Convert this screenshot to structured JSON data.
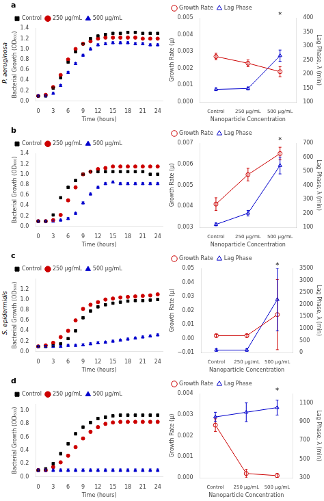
{
  "chart_data": [
    {
      "type": "scatter",
      "title": "a",
      "x_label": "Time (hours)",
      "y_label": "Bacterial Growth (OD₆₀₀)",
      "x": [
        0,
        1.5,
        3,
        4.5,
        6,
        7.5,
        9,
        10.5,
        12,
        13.5,
        15,
        16.5,
        18,
        19.5,
        21,
        22.5,
        24
      ],
      "series": [
        {
          "name": "Control",
          "color": "#000000",
          "marker": "square",
          "values": [
            0.1,
            0.1,
            0.25,
            0.45,
            0.75,
            0.95,
            1.1,
            1.2,
            1.25,
            1.28,
            1.3,
            1.3,
            1.32,
            1.32,
            1.3,
            1.3,
            1.3
          ],
          "errors": [
            0.02,
            0.02,
            0.02,
            0.02,
            0.02,
            0.02,
            0.02,
            0.02,
            0.02,
            0.02,
            0.02,
            0.02,
            0.02,
            0.02,
            0.02,
            0.02,
            0.02
          ]
        },
        {
          "name": "250 μg/mL",
          "color": "#cc0000",
          "marker": "circle",
          "values": [
            0.1,
            0.12,
            0.27,
            0.5,
            0.8,
            1.0,
            1.1,
            1.15,
            1.2,
            1.22,
            1.22,
            1.22,
            1.22,
            1.22,
            1.2,
            1.2,
            1.2
          ],
          "errors": [
            0.02,
            0.02,
            0.02,
            0.02,
            0.02,
            0.02,
            0.02,
            0.02,
            0.02,
            0.02,
            0.02,
            0.02,
            0.02,
            0.02,
            0.02,
            0.02,
            0.02
          ]
        },
        {
          "name": "500 μg/mL",
          "color": "#0000cc",
          "marker": "triangle",
          "values": [
            0.1,
            0.1,
            0.15,
            0.3,
            0.55,
            0.72,
            0.88,
            1.0,
            1.08,
            1.1,
            1.12,
            1.12,
            1.12,
            1.1,
            1.1,
            1.08,
            1.08
          ],
          "errors": [
            0.02,
            0.02,
            0.02,
            0.02,
            0.02,
            0.02,
            0.02,
            0.02,
            0.02,
            0.02,
            0.02,
            0.02,
            0.02,
            0.02,
            0.02,
            0.02,
            0.02
          ]
        }
      ],
      "xlim": [
        -0.5,
        25
      ],
      "xticks": [
        0,
        3,
        6,
        9,
        12,
        15,
        18,
        21,
        24
      ],
      "ylim": [
        0,
        1.4
      ],
      "yticks": [
        {
          "value": 0,
          "label": "0.0"
        },
        0.2,
        0.4,
        0.6,
        0.8,
        {
          "value": 1,
          "label": "1.0"
        },
        1.2,
        1.4
      ],
      "grid": false,
      "legend": "upper left",
      "annotations": [
        {
          "text": "P. aeruginosa"
        }
      ]
    },
    {
      "type": "line",
      "x_label": "Nanoparticle Concentration",
      "y_label": "Growth Rate (μ)",
      "y2_label": "Lag Phase, λ (min)",
      "categories": [
        "Control",
        "250 μg/mL",
        "500 μg/mL"
      ],
      "series": [
        {
          "name": "Growth Rate",
          "color": "#cc0000",
          "marker": "circle",
          "values": [
            0.0027,
            0.0023,
            0.0018
          ],
          "errors": [
            0.0002,
            0.0002,
            0.0003
          ]
        },
        {
          "name": "Lag Phase",
          "color": "#0000cc",
          "marker": "triangle",
          "axis": "y2",
          "values": [
            145,
            148,
            265
          ],
          "errors": [
            5,
            5,
            20
          ]
        }
      ],
      "ylim": [
        0.0,
        0.005
      ],
      "yticks": [
        {
          "value": 0,
          "label": "0.000"
        },
        0.001,
        0.002,
        0.003,
        0.004,
        0.005
      ],
      "y2lim": [
        100,
        400
      ],
      "y2ticks": [
        100,
        150,
        200,
        250,
        300,
        350,
        400
      ],
      "grid": false,
      "legend": "upper left",
      "annotations": [
        {
          "text": "*",
          "x": "500 μg/mL"
        }
      ]
    },
    {
      "type": "scatter",
      "title": "b",
      "x_label": "Time (hours)",
      "y_label": "Bacterial Growth (OD₆₀₀)",
      "x": [
        0,
        1.5,
        3,
        4.5,
        6,
        7.5,
        9,
        10.5,
        12,
        13.5,
        15,
        16.5,
        18,
        19.5,
        21,
        22.5,
        24
      ],
      "series": [
        {
          "name": "Control",
          "color": "#000000",
          "marker": "square",
          "values": [
            0.1,
            0.1,
            0.22,
            0.55,
            0.75,
            0.88,
            1.0,
            1.05,
            1.05,
            1.05,
            1.05,
            1.05,
            1.05,
            1.05,
            1.05,
            1.0,
            1.0
          ],
          "errors": [
            0.02,
            0.02,
            0.02,
            0.02,
            0.02,
            0.02,
            0.02,
            0.02,
            0.02,
            0.02,
            0.02,
            0.02,
            0.02,
            0.02,
            0.02,
            0.02,
            0.02
          ]
        },
        {
          "name": "250 μg/mL",
          "color": "#cc0000",
          "marker": "circle",
          "values": [
            0.1,
            0.1,
            0.12,
            0.22,
            0.5,
            0.75,
            1.0,
            1.05,
            1.1,
            1.12,
            1.15,
            1.15,
            1.15,
            1.15,
            1.15,
            1.15,
            1.15
          ],
          "errors": [
            0.02,
            0.02,
            0.02,
            0.02,
            0.02,
            0.02,
            0.02,
            0.02,
            0.02,
            0.02,
            0.02,
            0.02,
            0.02,
            0.02,
            0.02,
            0.02,
            0.02
          ]
        },
        {
          "name": "500 μg/mL",
          "color": "#0000cc",
          "marker": "triangle",
          "values": [
            0.1,
            0.1,
            0.1,
            0.12,
            0.15,
            0.25,
            0.45,
            0.62,
            0.75,
            0.82,
            0.85,
            0.82,
            0.82,
            0.82,
            0.82,
            0.82,
            0.82
          ],
          "errors": [
            0.02,
            0.02,
            0.02,
            0.02,
            0.02,
            0.02,
            0.02,
            0.02,
            0.02,
            0.02,
            0.02,
            0.02,
            0.02,
            0.02,
            0.02,
            0.02,
            0.02
          ]
        }
      ],
      "xlim": [
        -0.5,
        25
      ],
      "xticks": [
        0,
        3,
        6,
        9,
        12,
        15,
        18,
        21,
        24
      ],
      "ylim": [
        0,
        1.4
      ],
      "yticks": [
        {
          "value": 0,
          "label": "0.0"
        },
        0.2,
        0.4,
        0.6,
        0.8,
        {
          "value": 1,
          "label": "1.0"
        },
        1.2,
        1.4
      ],
      "grid": false,
      "legend": "upper left"
    },
    {
      "type": "line",
      "x_label": "Nanoparticle Concentration",
      "y_label": "Growth Rate (μ)",
      "y2_label": "Lag Phase, λ (min)",
      "categories": [
        "Control",
        "250 μg/mL",
        "500 μg/mL"
      ],
      "series": [
        {
          "name": "Growth Rate",
          "color": "#cc0000",
          "marker": "circle",
          "values": [
            0.0041,
            0.0055,
            0.0065
          ],
          "errors": [
            0.0003,
            0.0003,
            0.0003
          ]
        },
        {
          "name": "Lag Phase",
          "color": "#0000cc",
          "marker": "triangle",
          "axis": "y2",
          "values": [
            120,
            200,
            540
          ],
          "errors": [
            10,
            20,
            60
          ]
        }
      ],
      "ylim": [
        0.003,
        0.007
      ],
      "yticks": [
        0.003,
        0.004,
        0.005,
        0.006,
        0.007
      ],
      "y2lim": [
        100,
        700
      ],
      "y2ticks": [
        100,
        200,
        300,
        400,
        500,
        600,
        700
      ],
      "grid": false,
      "legend": "upper left",
      "annotations": [
        {
          "text": "*",
          "x": "500 μg/mL"
        }
      ]
    },
    {
      "type": "scatter",
      "title": "c",
      "x_label": "Time (hours)",
      "y_label": "Bacterial Growth (OD₆₀₀)",
      "x": [
        0,
        1.5,
        3,
        4.5,
        6,
        7.5,
        9,
        10.5,
        12,
        13.5,
        15,
        16.5,
        18,
        19.5,
        21,
        22.5,
        24
      ],
      "series": [
        {
          "name": "Control",
          "color": "#000000",
          "marker": "square",
          "values": [
            0.1,
            0.1,
            0.12,
            0.15,
            0.25,
            0.4,
            0.65,
            0.78,
            0.86,
            0.9,
            0.93,
            0.95,
            0.97,
            0.98,
            0.98,
            0.99,
            1.0
          ],
          "errors": [
            0.02,
            0.02,
            0.02,
            0.02,
            0.02,
            0.02,
            0.02,
            0.02,
            0.02,
            0.02,
            0.02,
            0.02,
            0.02,
            0.02,
            0.02,
            0.02,
            0.02
          ]
        },
        {
          "name": "250 μg/mL",
          "color": "#cc0000",
          "marker": "circle",
          "values": [
            0.1,
            0.12,
            0.17,
            0.28,
            0.4,
            0.6,
            0.82,
            0.9,
            0.95,
            1.0,
            1.02,
            1.04,
            1.05,
            1.06,
            1.07,
            1.08,
            1.1
          ],
          "errors": [
            0.02,
            0.02,
            0.02,
            0.02,
            0.02,
            0.02,
            0.02,
            0.02,
            0.02,
            0.02,
            0.02,
            0.02,
            0.02,
            0.02,
            0.02,
            0.02,
            0.02
          ]
        },
        {
          "name": "500 μg/mL",
          "color": "#0000cc",
          "marker": "triangle",
          "values": [
            0.1,
            0.1,
            0.1,
            0.1,
            0.12,
            0.12,
            0.13,
            0.15,
            0.17,
            0.18,
            0.2,
            0.22,
            0.24,
            0.26,
            0.28,
            0.3,
            0.32
          ],
          "errors": [
            0.02,
            0.02,
            0.02,
            0.02,
            0.02,
            0.02,
            0.02,
            0.02,
            0.02,
            0.02,
            0.02,
            0.02,
            0.02,
            0.02,
            0.02,
            0.02,
            0.02
          ]
        }
      ],
      "xlim": [
        -0.5,
        25
      ],
      "xticks": [
        0,
        3,
        6,
        9,
        12,
        15,
        18,
        21,
        24
      ],
      "ylim": [
        0,
        1.4
      ],
      "yticks": [
        {
          "value": 0,
          "label": "0.0"
        },
        0.2,
        0.4,
        0.6,
        0.8,
        {
          "value": 1,
          "label": "1.0"
        },
        1.2
      ],
      "grid": false,
      "legend": "upper left",
      "annotations": [
        {
          "text": "S. epidermidis"
        }
      ]
    },
    {
      "type": "line",
      "x_label": "Nanoparticle Concentration",
      "y_label": "Growth Rate (μ)",
      "y2_label": "Lag Phase, λ (min)",
      "categories": [
        "Control",
        "250 μg/mL",
        "500 μg/mL"
      ],
      "series": [
        {
          "name": "Growth Rate",
          "color": "#cc0000",
          "marker": "circle",
          "values": [
            0.002,
            0.002,
            0.017
          ],
          "errors": [
            0.001,
            0.001,
            0.025
          ]
        },
        {
          "name": "Lag Phase",
          "color": "#0000cc",
          "marker": "triangle",
          "axis": "y2",
          "values": [
            100,
            100,
            2200
          ],
          "errors": [
            50,
            50,
            1300
          ]
        }
      ],
      "ylim": [
        -0.01,
        0.05
      ],
      "yticks": [
        {
          "value": -0.01,
          "label": "−0.01"
        },
        {
          "value": 0,
          "label": "0.00"
        },
        0.01,
        0.02,
        0.03,
        0.04,
        0.05
      ],
      "y2lim": [
        0,
        3500
      ],
      "y2ticks": [
        0,
        500,
        1000,
        1500,
        2000,
        2500,
        3000,
        3500
      ],
      "grid": false,
      "legend": "upper left",
      "annotations": [
        {
          "text": "*",
          "x": "500 μg/mL"
        }
      ]
    },
    {
      "type": "scatter",
      "title": "d",
      "x_label": "Time (hours)",
      "y_label": "Bacterial Growth (OD₆₀₀)",
      "x": [
        0,
        1.5,
        3,
        4.5,
        6,
        7.5,
        9,
        10.5,
        12,
        13.5,
        15,
        16.5,
        18,
        19.5,
        21,
        22.5,
        24
      ],
      "series": [
        {
          "name": "Control",
          "color": "#000000",
          "marker": "square",
          "values": [
            0.1,
            0.12,
            0.2,
            0.35,
            0.5,
            0.65,
            0.75,
            0.82,
            0.88,
            0.9,
            0.92,
            0.93,
            0.93,
            0.93,
            0.93,
            0.93,
            0.93
          ],
          "errors": [
            0.02,
            0.02,
            0.02,
            0.02,
            0.02,
            0.02,
            0.02,
            0.02,
            0.02,
            0.02,
            0.02,
            0.02,
            0.02,
            0.02,
            0.02,
            0.02,
            0.02
          ]
        },
        {
          "name": "250 μg/mL",
          "color": "#cc0000",
          "marker": "circle",
          "values": [
            0.1,
            0.1,
            0.15,
            0.22,
            0.32,
            0.45,
            0.58,
            0.68,
            0.75,
            0.8,
            0.82,
            0.83,
            0.83,
            0.83,
            0.83,
            0.83,
            0.83
          ],
          "errors": [
            0.02,
            0.02,
            0.02,
            0.02,
            0.02,
            0.02,
            0.02,
            0.02,
            0.02,
            0.02,
            0.02,
            0.02,
            0.02,
            0.02,
            0.02,
            0.02,
            0.02
          ]
        },
        {
          "name": "500 μg/mL",
          "color": "#0000cc",
          "marker": "triangle",
          "values": [
            0.1,
            0.1,
            0.1,
            0.1,
            0.1,
            0.1,
            0.1,
            0.1,
            0.1,
            0.1,
            0.1,
            0.1,
            0.1,
            0.1,
            0.1,
            0.1,
            0.1
          ],
          "errors": [
            0.02,
            0.02,
            0.02,
            0.02,
            0.02,
            0.02,
            0.02,
            0.02,
            0.02,
            0.02,
            0.02,
            0.02,
            0.02,
            0.02,
            0.02,
            0.02,
            0.02
          ]
        }
      ],
      "xlim": [
        -0.5,
        25
      ],
      "xticks": [
        0,
        3,
        6,
        9,
        12,
        15,
        18,
        21,
        24
      ],
      "ylim": [
        0,
        1.1
      ],
      "yticks": [
        {
          "value": 0,
          "label": "0.0"
        },
        0.2,
        0.4,
        0.6,
        0.8,
        {
          "value": 1,
          "label": "1.0"
        }
      ],
      "grid": false,
      "legend": "upper left"
    },
    {
      "type": "line",
      "x_label": "Nanoparticle Concentration",
      "y_label": "Growth Rate (μ)",
      "y2_label": "Lag Phase, λ (min)",
      "categories": [
        "Control",
        "250 μg/mL",
        "500 μg/mL"
      ],
      "series": [
        {
          "name": "Growth Rate",
          "color": "#cc0000",
          "marker": "circle",
          "values": [
            0.0025,
            0.0002,
            0.0001
          ],
          "errors": [
            0.0003,
            0.0002,
            0.0001
          ]
        },
        {
          "name": "Lag Phase",
          "color": "#0000cc",
          "marker": "triangle",
          "axis": "y2",
          "values": [
            950,
            1000,
            1050
          ],
          "errors": [
            50,
            100,
            80
          ]
        }
      ],
      "ylim": [
        0.0,
        0.004
      ],
      "yticks": [
        {
          "value": 0,
          "label": "0.000"
        },
        0.001,
        0.002,
        0.003,
        0.004
      ],
      "y2lim": [
        300,
        1200
      ],
      "y2ticks": [
        300,
        500,
        700,
        900,
        1100
      ],
      "grid": false,
      "legend": "upper left",
      "annotations": [
        {
          "text": "*",
          "x": "500 μg/mL"
        }
      ]
    }
  ]
}
